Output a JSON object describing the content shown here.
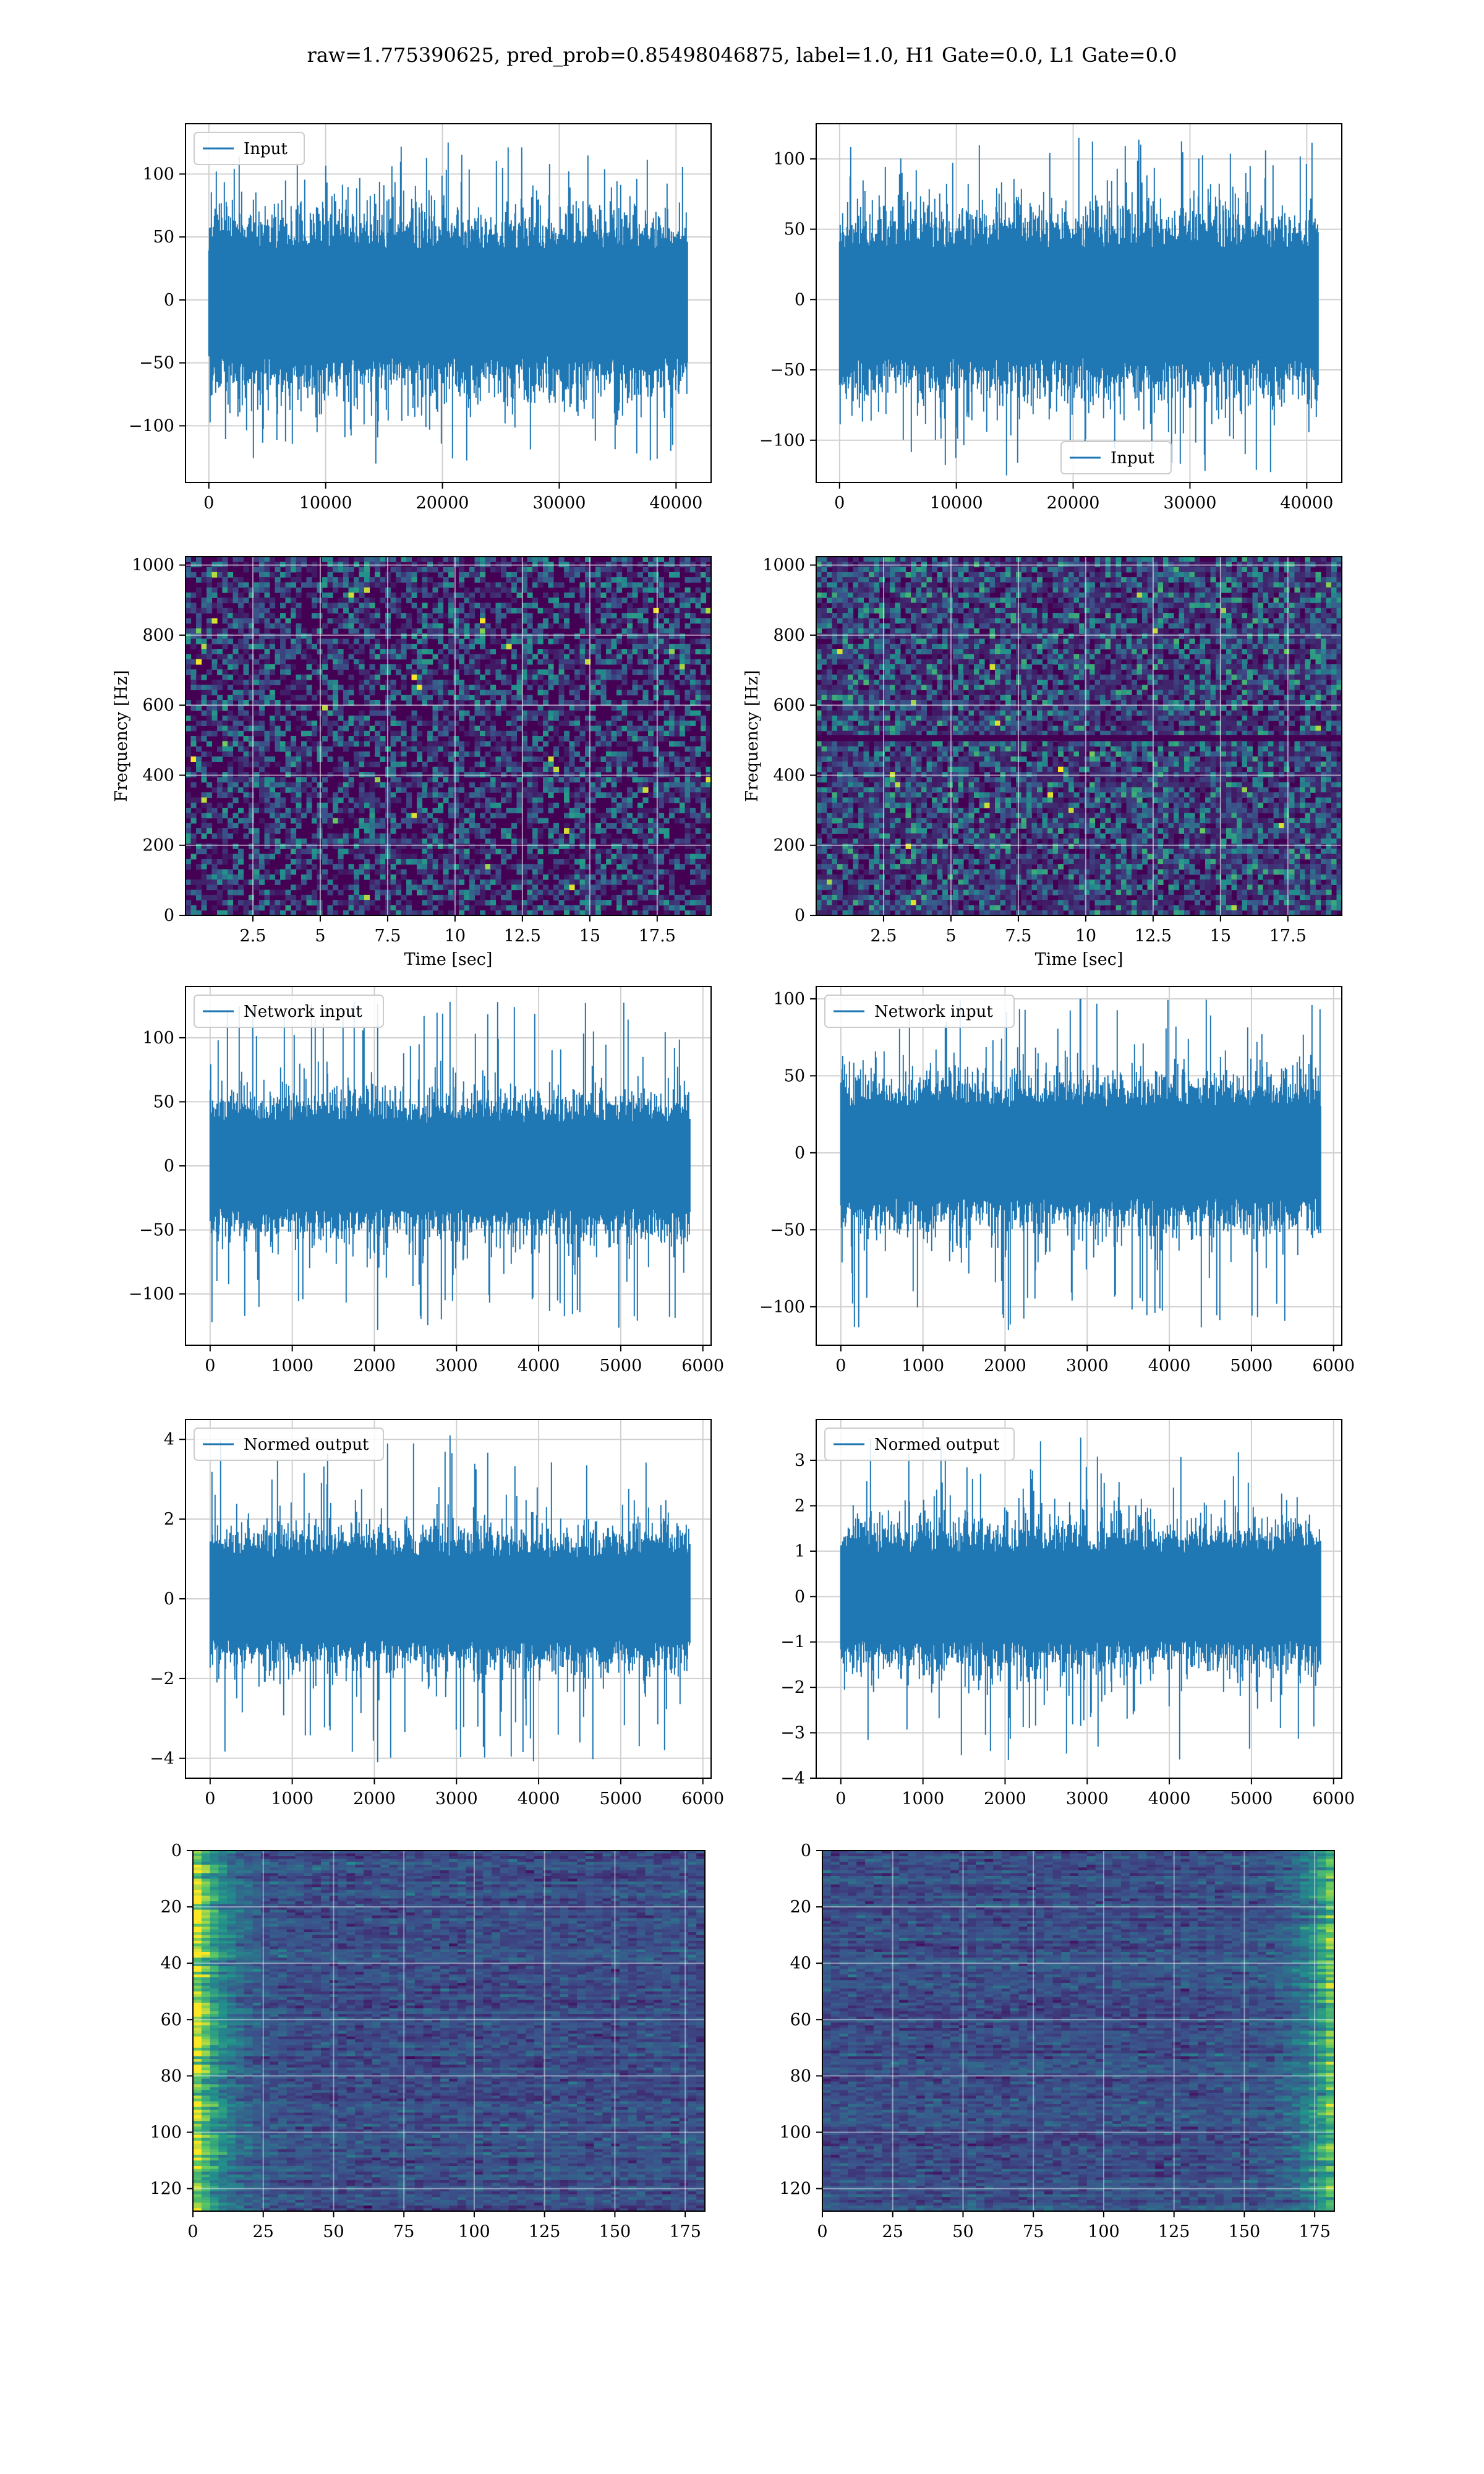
{
  "suptitle": "raw=1.775390625, pred_prob=0.85498046875, label=1.0, H1 Gate=0.0, L1 Gate=0.0",
  "colors": {
    "line": "#1f77b4",
    "grid": "#d0d0d0",
    "viridis_dark": "#440154",
    "viridis_mid": "#21918c",
    "viridis_bright": "#fde725"
  },
  "chart_data": [
    {
      "id": "input-h1",
      "type": "line",
      "legend": [
        "Input"
      ],
      "legend_loc": "upper-left",
      "xlim": [
        -2000,
        43000
      ],
      "ylim": [
        -145,
        140
      ],
      "xticks": [
        0,
        10000,
        20000,
        30000,
        40000
      ],
      "yticks": [
        -100,
        -50,
        0,
        50,
        100
      ],
      "n_samples": 40960,
      "band": [
        -60,
        55
      ],
      "spike_max": 125,
      "spike_min": -130,
      "xlabel": "",
      "ylabel": ""
    },
    {
      "id": "input-l1",
      "type": "line",
      "legend": [
        "Input"
      ],
      "legend_loc": "lower-center",
      "xlim": [
        -2000,
        43000
      ],
      "ylim": [
        -130,
        125
      ],
      "xticks": [
        0,
        10000,
        20000,
        30000,
        40000
      ],
      "yticks": [
        -100,
        -50,
        0,
        50,
        100
      ],
      "n_samples": 40960,
      "band": [
        -55,
        50
      ],
      "spike_max": 115,
      "spike_min": -125,
      "xlabel": "",
      "ylabel": ""
    },
    {
      "id": "spec-h1",
      "type": "heatmap",
      "xlim": [
        0,
        19.5
      ],
      "ylim": [
        0,
        1024
      ],
      "xticks": [
        2.5,
        5.0,
        7.5,
        10.0,
        12.5,
        15.0,
        17.5
      ],
      "yticks": [
        0,
        200,
        400,
        600,
        800,
        1000
      ],
      "xlabel": "Time [sec]",
      "ylabel": "Frequency [Hz]",
      "colormap": "viridis",
      "intensity": "low"
    },
    {
      "id": "spec-l1",
      "type": "heatmap",
      "xlim": [
        0,
        19.5
      ],
      "ylim": [
        0,
        1024
      ],
      "xticks": [
        2.5,
        5.0,
        7.5,
        10.0,
        12.5,
        15.0,
        17.5
      ],
      "yticks": [
        0,
        200,
        400,
        600,
        800,
        1000
      ],
      "xlabel": "Time [sec]",
      "ylabel": "Frequency [Hz]",
      "colormap": "viridis",
      "intensity": "medium"
    },
    {
      "id": "net-h1",
      "type": "line",
      "legend": [
        "Network input"
      ],
      "legend_loc": "upper-left",
      "xlim": [
        -300,
        6100
      ],
      "ylim": [
        -140,
        140
      ],
      "xticks": [
        0,
        1000,
        2000,
        3000,
        4000,
        5000,
        6000
      ],
      "yticks": [
        -100,
        -50,
        0,
        50,
        100
      ],
      "n_samples": 5840,
      "band": [
        -45,
        45
      ],
      "spike_max": 128,
      "spike_min": -128,
      "xlabel": "",
      "ylabel": ""
    },
    {
      "id": "net-l1",
      "type": "line",
      "legend": [
        "Network input"
      ],
      "legend_loc": "upper-left",
      "xlim": [
        -300,
        6100
      ],
      "ylim": [
        -125,
        108
      ],
      "xticks": [
        0,
        1000,
        2000,
        3000,
        4000,
        5000,
        6000
      ],
      "yticks": [
        -100,
        -50,
        0,
        50,
        100
      ],
      "n_samples": 5840,
      "band": [
        -40,
        40
      ],
      "spike_max": 100,
      "spike_min": -115,
      "xlabel": "",
      "ylabel": ""
    },
    {
      "id": "norm-h1",
      "type": "line",
      "legend": [
        "Normed output"
      ],
      "legend_loc": "upper-left",
      "xlim": [
        -300,
        6100
      ],
      "ylim": [
        -4.5,
        4.5
      ],
      "xticks": [
        0,
        1000,
        2000,
        3000,
        4000,
        5000,
        6000
      ],
      "yticks": [
        -4,
        -2,
        0,
        2,
        4
      ],
      "n_samples": 5840,
      "band": [
        -1.4,
        1.4
      ],
      "spike_max": 4.1,
      "spike_min": -4.1,
      "xlabel": "",
      "ylabel": ""
    },
    {
      "id": "norm-l1",
      "type": "line",
      "legend": [
        "Normed output"
      ],
      "legend_loc": "upper-left",
      "xlim": [
        -300,
        6100
      ],
      "ylim": [
        -4.0,
        3.9
      ],
      "xticks": [
        0,
        1000,
        2000,
        3000,
        4000,
        5000,
        6000
      ],
      "yticks": [
        -4,
        -3,
        -2,
        -1,
        0,
        1,
        2,
        3
      ],
      "n_samples": 5840,
      "band": [
        -1.3,
        1.3
      ],
      "spike_max": 3.5,
      "spike_min": -3.6,
      "xlabel": "",
      "ylabel": ""
    },
    {
      "id": "feat-h1",
      "type": "heatmap",
      "xlim": [
        0,
        182
      ],
      "ylim": [
        128,
        0
      ],
      "xticks": [
        0,
        25,
        50,
        75,
        100,
        125,
        150,
        175
      ],
      "yticks": [
        0,
        20,
        40,
        60,
        80,
        100,
        120
      ],
      "xlabel": "",
      "ylabel": "",
      "colormap": "viridis",
      "hot_side": "left"
    },
    {
      "id": "feat-l1",
      "type": "heatmap",
      "xlim": [
        0,
        182
      ],
      "ylim": [
        128,
        0
      ],
      "xticks": [
        0,
        25,
        50,
        75,
        100,
        125,
        150,
        175
      ],
      "yticks": [
        0,
        20,
        40,
        60,
        80,
        100,
        120
      ],
      "xlabel": "",
      "ylabel": "",
      "colormap": "viridis",
      "hot_side": "right"
    }
  ]
}
